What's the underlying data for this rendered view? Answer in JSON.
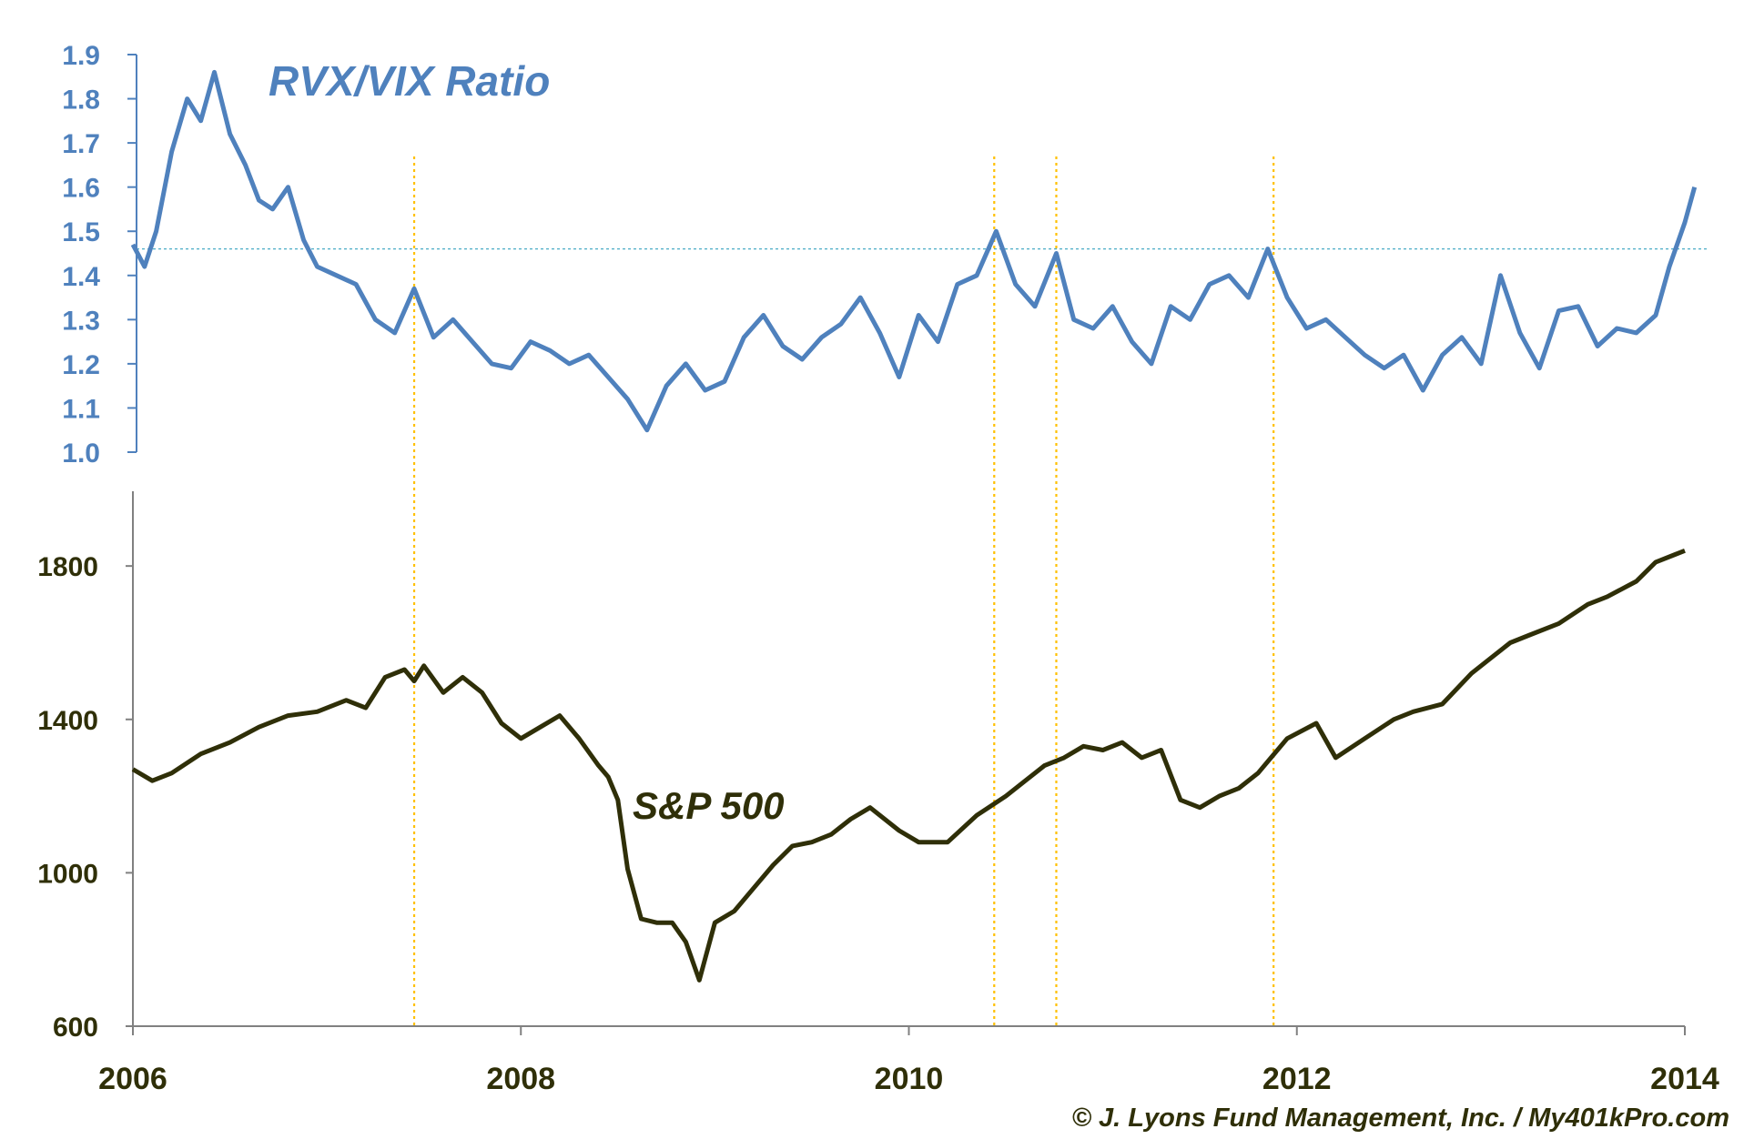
{
  "chart_data": [
    {
      "type": "line",
      "title": "RVX/VIX Ratio",
      "ylim": [
        1.0,
        1.9
      ],
      "yticks": [
        "1.9",
        "1.8",
        "1.7",
        "1.6",
        "1.5",
        "1.4",
        "1.3",
        "1.2",
        "1.1",
        "1.0"
      ],
      "xlim": [
        2006.0,
        2014.0
      ],
      "reference_line": 1.46,
      "color": "#4f81bd",
      "series": [
        {
          "x": [
            2006.0,
            2006.06,
            2006.12,
            2006.2,
            2006.28,
            2006.35,
            2006.42,
            2006.5,
            2006.58,
            2006.65,
            2006.72,
            2006.8,
            2006.88,
            2006.95,
            2007.05,
            2007.15,
            2007.25,
            2007.35,
            2007.45,
            2007.55,
            2007.65,
            2007.75,
            2007.85,
            2007.95,
            2008.05,
            2008.15,
            2008.25,
            2008.35,
            2008.45,
            2008.55,
            2008.65,
            2008.75,
            2008.85,
            2008.95,
            2009.05,
            2009.15,
            2009.25,
            2009.35,
            2009.45,
            2009.55,
            2009.65,
            2009.75,
            2009.85,
            2009.95,
            2010.05,
            2010.15,
            2010.25,
            2010.35,
            2010.45,
            2010.55,
            2010.65,
            2010.76,
            2010.85,
            2010.95,
            2011.05,
            2011.15,
            2011.25,
            2011.35,
            2011.45,
            2011.55,
            2011.65,
            2011.75,
            2011.85,
            2011.95,
            2012.05,
            2012.15,
            2012.25,
            2012.35,
            2012.45,
            2012.55,
            2012.65,
            2012.75,
            2012.85,
            2012.95,
            2013.05,
            2013.15,
            2013.25,
            2013.35,
            2013.45,
            2013.55,
            2013.65,
            2013.75,
            2013.85,
            2013.92,
            2014.0,
            2014.05
          ],
          "y": [
            1.47,
            1.42,
            1.5,
            1.68,
            1.8,
            1.75,
            1.86,
            1.72,
            1.65,
            1.57,
            1.55,
            1.6,
            1.48,
            1.42,
            1.4,
            1.38,
            1.3,
            1.27,
            1.37,
            1.26,
            1.3,
            1.25,
            1.2,
            1.19,
            1.25,
            1.23,
            1.2,
            1.22,
            1.17,
            1.12,
            1.05,
            1.15,
            1.2,
            1.14,
            1.16,
            1.26,
            1.31,
            1.24,
            1.21,
            1.26,
            1.29,
            1.35,
            1.27,
            1.17,
            1.31,
            1.25,
            1.38,
            1.4,
            1.5,
            1.38,
            1.33,
            1.45,
            1.3,
            1.28,
            1.33,
            1.25,
            1.2,
            1.33,
            1.3,
            1.38,
            1.4,
            1.35,
            1.46,
            1.35,
            1.28,
            1.3,
            1.26,
            1.22,
            1.19,
            1.22,
            1.14,
            1.22,
            1.26,
            1.2,
            1.4,
            1.27,
            1.19,
            1.32,
            1.33,
            1.24,
            1.28,
            1.27,
            1.31,
            1.42,
            1.52,
            1.6
          ]
        }
      ]
    },
    {
      "type": "line",
      "title": "",
      "label": "S&P 500",
      "ylim": [
        600,
        1900
      ],
      "yticks": [
        "1800",
        "1400",
        "1000",
        "600"
      ],
      "xlim": [
        2006.0,
        2014.0
      ],
      "xticks": [
        "2006",
        "2008",
        "2010",
        "2012",
        "2014"
      ],
      "color": "#2f2f08",
      "series": [
        {
          "x": [
            2006.0,
            2006.1,
            2006.2,
            2006.35,
            2006.5,
            2006.65,
            2006.8,
            2006.95,
            2007.1,
            2007.2,
            2007.3,
            2007.4,
            2007.45,
            2007.5,
            2007.6,
            2007.7,
            2007.8,
            2007.9,
            2008.0,
            2008.1,
            2008.2,
            2008.3,
            2008.4,
            2008.45,
            2008.5,
            2008.55,
            2008.62,
            2008.7,
            2008.78,
            2008.85,
            2008.92,
            2009.0,
            2009.1,
            2009.2,
            2009.3,
            2009.4,
            2009.5,
            2009.6,
            2009.7,
            2009.8,
            2009.95,
            2010.05,
            2010.2,
            2010.35,
            2010.5,
            2010.6,
            2010.7,
            2010.8,
            2010.9,
            2011.0,
            2011.1,
            2011.2,
            2011.3,
            2011.4,
            2011.5,
            2011.6,
            2011.7,
            2011.8,
            2011.95,
            2012.1,
            2012.2,
            2012.35,
            2012.5,
            2012.6,
            2012.75,
            2012.9,
            2013.0,
            2013.1,
            2013.2,
            2013.35,
            2013.5,
            2013.6,
            2013.75,
            2013.85,
            2013.95,
            2014.0
          ],
          "y": [
            1270,
            1240,
            1260,
            1310,
            1340,
            1380,
            1410,
            1420,
            1450,
            1430,
            1510,
            1530,
            1500,
            1540,
            1470,
            1510,
            1470,
            1390,
            1350,
            1380,
            1410,
            1350,
            1280,
            1250,
            1190,
            1010,
            880,
            870,
            870,
            820,
            720,
            870,
            900,
            960,
            1020,
            1070,
            1080,
            1100,
            1140,
            1170,
            1110,
            1080,
            1080,
            1150,
            1200,
            1240,
            1280,
            1300,
            1330,
            1320,
            1340,
            1300,
            1320,
            1190,
            1170,
            1200,
            1220,
            1260,
            1350,
            1390,
            1300,
            1350,
            1400,
            1420,
            1440,
            1520,
            1560,
            1600,
            1620,
            1650,
            1700,
            1720,
            1760,
            1810,
            1830,
            1840
          ]
        }
      ]
    }
  ],
  "markers_x": [
    2007.45,
    2010.44,
    2010.76,
    2011.88
  ],
  "credit": "© J. Lyons Fund Management, Inc. / My401kPro.com",
  "colors": {
    "rvx_line": "#4f81bd",
    "sp_line": "#2f2f08",
    "marker": "#ffc000",
    "axis_top": "#4f81bd",
    "axis_bottom": "#808080",
    "tick_text_top": "#4f81bd",
    "tick_text_bottom": "#2f2f08"
  }
}
